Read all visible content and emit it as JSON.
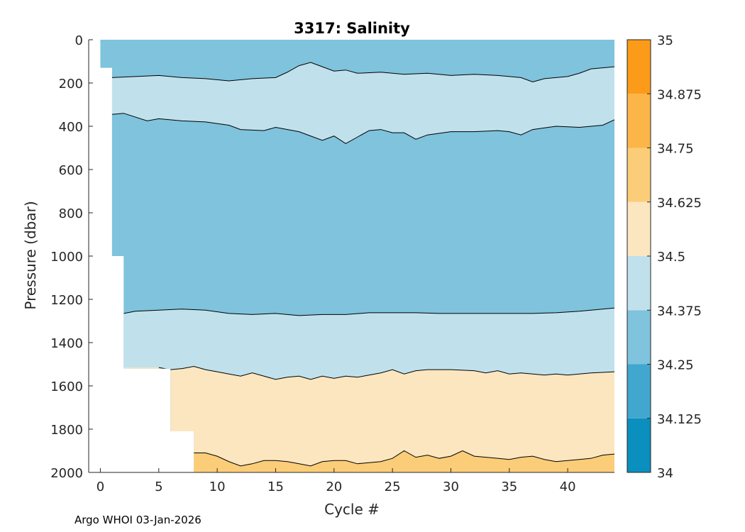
{
  "chart_data": {
    "type": "heatmap",
    "subtype": "filled-contour",
    "title": "3317:  Salinity",
    "xlabel": "Cycle #",
    "ylabel": "Pressure (dbar)",
    "xlim": [
      -1,
      44
    ],
    "ylim": [
      0,
      2000
    ],
    "y_reversed": true,
    "x_ticks": [
      0,
      5,
      10,
      15,
      20,
      25,
      30,
      35,
      40
    ],
    "y_ticks": [
      0,
      200,
      400,
      600,
      800,
      1000,
      1200,
      1400,
      1600,
      1800,
      2000
    ],
    "colorbar": {
      "levels": [
        34,
        34.125,
        34.25,
        34.375,
        34.5,
        34.625,
        34.75,
        34.875,
        35
      ],
      "tick_labels": [
        "34",
        "34.125",
        "34.25",
        "34.375",
        "34.5",
        "34.625",
        "34.75",
        "34.875",
        "35"
      ],
      "colors": [
        "#0a8fbf",
        "#42a7cf",
        "#7fc3dd",
        "#c0e1ec",
        "#fbe6bf",
        "#fbcd79",
        "#fbb548",
        "#fb9b19"
      ]
    },
    "data_start_depth": [
      [
        0,
        130
      ],
      [
        1,
        1000
      ],
      [
        2,
        1520
      ],
      [
        6,
        1810
      ],
      [
        8,
        2000
      ]
    ],
    "layers": [
      {
        "range": [
          34.25,
          34.375
        ],
        "color": "#7fc3dd",
        "top_depth": [
          [
            0,
            0
          ],
          [
            44,
            0
          ]
        ]
      },
      {
        "range": [
          34.375,
          34.5
        ],
        "color": "#c0e1ec",
        "top_depth": [
          [
            1,
            175
          ],
          [
            3,
            170
          ],
          [
            5,
            165
          ],
          [
            7,
            175
          ],
          [
            9,
            180
          ],
          [
            11,
            190
          ],
          [
            13,
            180
          ],
          [
            15,
            175
          ],
          [
            16,
            150
          ],
          [
            17,
            120
          ],
          [
            18,
            105
          ],
          [
            19,
            125
          ],
          [
            20,
            145
          ],
          [
            21,
            140
          ],
          [
            22,
            155
          ],
          [
            24,
            150
          ],
          [
            26,
            160
          ],
          [
            28,
            155
          ],
          [
            30,
            165
          ],
          [
            32,
            160
          ],
          [
            34,
            165
          ],
          [
            36,
            175
          ],
          [
            37,
            195
          ],
          [
            38,
            180
          ],
          [
            40,
            170
          ],
          [
            41,
            155
          ],
          [
            42,
            135
          ],
          [
            44,
            125
          ]
        ]
      },
      {
        "range": [
          34.25,
          34.375
        ],
        "color": "#7fc3dd",
        "top_depth": [
          [
            1,
            345
          ],
          [
            2,
            340
          ],
          [
            4,
            375
          ],
          [
            5,
            365
          ],
          [
            7,
            375
          ],
          [
            9,
            380
          ],
          [
            11,
            395
          ],
          [
            12,
            415
          ],
          [
            14,
            420
          ],
          [
            15,
            405
          ],
          [
            17,
            425
          ],
          [
            18,
            445
          ],
          [
            19,
            465
          ],
          [
            20,
            445
          ],
          [
            21,
            480
          ],
          [
            22,
            450
          ],
          [
            23,
            420
          ],
          [
            24,
            415
          ],
          [
            25,
            430
          ],
          [
            26,
            430
          ],
          [
            27,
            460
          ],
          [
            28,
            440
          ],
          [
            30,
            425
          ],
          [
            32,
            425
          ],
          [
            34,
            420
          ],
          [
            35,
            425
          ],
          [
            36,
            440
          ],
          [
            37,
            415
          ],
          [
            39,
            400
          ],
          [
            41,
            405
          ],
          [
            43,
            395
          ],
          [
            44,
            370
          ]
        ]
      },
      {
        "range": [
          34.375,
          34.5
        ],
        "color": "#c0e1ec",
        "top_depth": [
          [
            2,
            1265
          ],
          [
            3,
            1255
          ],
          [
            5,
            1250
          ],
          [
            7,
            1245
          ],
          [
            9,
            1250
          ],
          [
            11,
            1265
          ],
          [
            13,
            1270
          ],
          [
            15,
            1265
          ],
          [
            17,
            1275
          ],
          [
            19,
            1270
          ],
          [
            21,
            1270
          ],
          [
            23,
            1262
          ],
          [
            25,
            1262
          ],
          [
            27,
            1262
          ],
          [
            29,
            1265
          ],
          [
            31,
            1265
          ],
          [
            33,
            1265
          ],
          [
            35,
            1265
          ],
          [
            37,
            1265
          ],
          [
            39,
            1262
          ],
          [
            41,
            1255
          ],
          [
            43,
            1245
          ],
          [
            44,
            1240
          ]
        ]
      },
      {
        "range": [
          34.5,
          34.625
        ],
        "color": "#fbe6bf",
        "top_depth": [
          [
            5,
            1515
          ],
          [
            6,
            1525
          ],
          [
            7,
            1520
          ],
          [
            8,
            1510
          ],
          [
            9,
            1525
          ],
          [
            10,
            1535
          ],
          [
            11,
            1545
          ],
          [
            12,
            1555
          ],
          [
            13,
            1540
          ],
          [
            14,
            1555
          ],
          [
            15,
            1570
          ],
          [
            16,
            1560
          ],
          [
            17,
            1555
          ],
          [
            18,
            1570
          ],
          [
            19,
            1555
          ],
          [
            20,
            1565
          ],
          [
            21,
            1555
          ],
          [
            22,
            1560
          ],
          [
            23,
            1550
          ],
          [
            24,
            1540
          ],
          [
            25,
            1525
          ],
          [
            26,
            1545
          ],
          [
            27,
            1530
          ],
          [
            28,
            1525
          ],
          [
            30,
            1525
          ],
          [
            32,
            1530
          ],
          [
            33,
            1540
          ],
          [
            34,
            1530
          ],
          [
            35,
            1545
          ],
          [
            36,
            1540
          ],
          [
            37,
            1545
          ],
          [
            38,
            1550
          ],
          [
            39,
            1545
          ],
          [
            40,
            1550
          ],
          [
            41,
            1545
          ],
          [
            42,
            1540
          ],
          [
            44,
            1535
          ]
        ]
      },
      {
        "range": [
          34.625,
          34.75
        ],
        "color": "#fbcd79",
        "top_depth": [
          [
            8,
            1910
          ],
          [
            9,
            1910
          ],
          [
            10,
            1925
          ],
          [
            11,
            1950
          ],
          [
            12,
            1970
          ],
          [
            13,
            1960
          ],
          [
            14,
            1945
          ],
          [
            15,
            1945
          ],
          [
            16,
            1950
          ],
          [
            17,
            1960
          ],
          [
            18,
            1970
          ],
          [
            19,
            1950
          ],
          [
            20,
            1945
          ],
          [
            21,
            1945
          ],
          [
            22,
            1960
          ],
          [
            23,
            1955
          ],
          [
            24,
            1950
          ],
          [
            25,
            1935
          ],
          [
            26,
            1900
          ],
          [
            27,
            1930
          ],
          [
            28,
            1920
          ],
          [
            29,
            1935
          ],
          [
            30,
            1925
          ],
          [
            31,
            1900
          ],
          [
            32,
            1925
          ],
          [
            33,
            1930
          ],
          [
            34,
            1935
          ],
          [
            35,
            1940
          ],
          [
            36,
            1930
          ],
          [
            37,
            1925
          ],
          [
            38,
            1940
          ],
          [
            39,
            1950
          ],
          [
            40,
            1945
          ],
          [
            41,
            1940
          ],
          [
            42,
            1935
          ],
          [
            43,
            1920
          ],
          [
            44,
            1915
          ]
        ]
      }
    ]
  },
  "footer": {
    "text": "Argo WHOI 03-Jan-2026"
  }
}
